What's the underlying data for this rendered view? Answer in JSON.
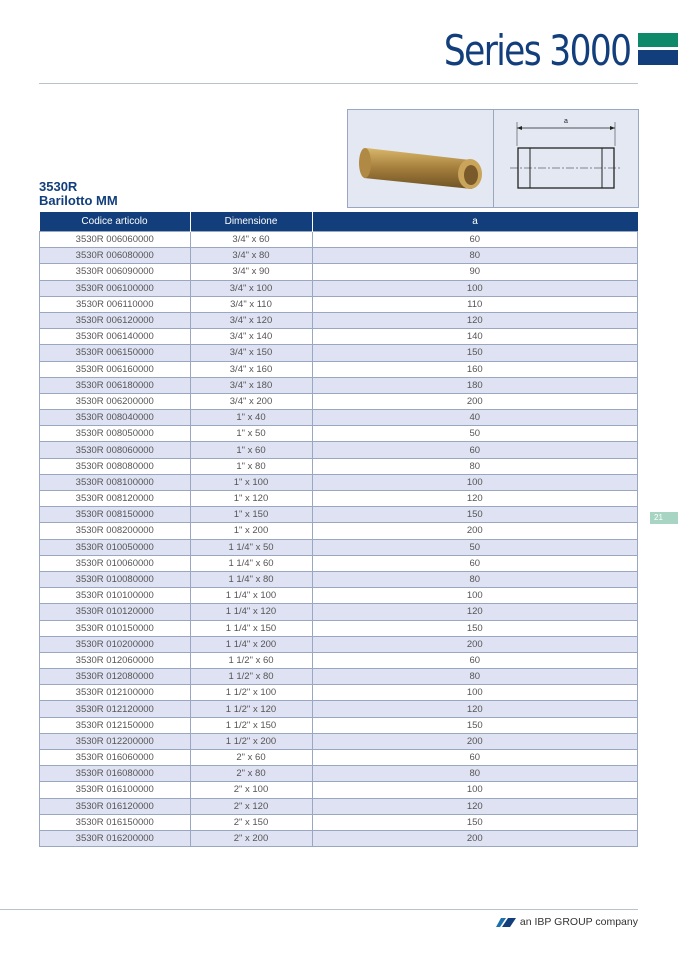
{
  "header": {
    "brand": "Series 3000",
    "colors": {
      "brand_blue": "#123f7c",
      "brand_green": "#0e8a6a"
    }
  },
  "product": {
    "code": "3530R",
    "name": "Barilotto MM",
    "dimension_label": "a"
  },
  "table": {
    "columns": [
      "Codice articolo",
      "Dimensione",
      "a"
    ],
    "rows": [
      [
        "3530R 006060000",
        "3/4\" x 60",
        "60"
      ],
      [
        "3530R 006080000",
        "3/4\" x 80",
        "80"
      ],
      [
        "3530R 006090000",
        "3/4\" x 90",
        "90"
      ],
      [
        "3530R 006100000",
        "3/4\" x 100",
        "100"
      ],
      [
        "3530R 006110000",
        "3/4\" x 110",
        "110"
      ],
      [
        "3530R 006120000",
        "3/4\" x 120",
        "120"
      ],
      [
        "3530R 006140000",
        "3/4\" x 140",
        "140"
      ],
      [
        "3530R 006150000",
        "3/4\" x 150",
        "150"
      ],
      [
        "3530R 006160000",
        "3/4\" x 160",
        "160"
      ],
      [
        "3530R 006180000",
        "3/4\" x 180",
        "180"
      ],
      [
        "3530R 006200000",
        "3/4\" x 200",
        "200"
      ],
      [
        "3530R 008040000",
        "1\" x 40",
        "40"
      ],
      [
        "3530R 008050000",
        "1\" x 50",
        "50"
      ],
      [
        "3530R 008060000",
        "1\" x 60",
        "60"
      ],
      [
        "3530R 008080000",
        "1\" x 80",
        "80"
      ],
      [
        "3530R 008100000",
        "1\" x 100",
        "100"
      ],
      [
        "3530R 008120000",
        "1\" x 120",
        "120"
      ],
      [
        "3530R 008150000",
        "1\" x 150",
        "150"
      ],
      [
        "3530R 008200000",
        "1\" x 200",
        "200"
      ],
      [
        "3530R 010050000",
        "1 1/4\" x 50",
        "50"
      ],
      [
        "3530R 010060000",
        "1 1/4\" x 60",
        "60"
      ],
      [
        "3530R 010080000",
        "1 1/4\" x 80",
        "80"
      ],
      [
        "3530R 010100000",
        "1 1/4\" x 100",
        "100"
      ],
      [
        "3530R 010120000",
        "1 1/4\" x 120",
        "120"
      ],
      [
        "3530R 010150000",
        "1 1/4\" x 150",
        "150"
      ],
      [
        "3530R 010200000",
        "1 1/4\" x 200",
        "200"
      ],
      [
        "3530R 012060000",
        "1 1/2\" x 60",
        "60"
      ],
      [
        "3530R 012080000",
        "1 1/2\" x 80",
        "80"
      ],
      [
        "3530R 012100000",
        "1 1/2\" x 100",
        "100"
      ],
      [
        "3530R 012120000",
        "1 1/2\" x 120",
        "120"
      ],
      [
        "3530R 012150000",
        "1 1/2\" x 150",
        "150"
      ],
      [
        "3530R 012200000",
        "1 1/2\" x 200",
        "200"
      ],
      [
        "3530R 016060000",
        "2\" x 60",
        "60"
      ],
      [
        "3530R 016080000",
        "2\" x 80",
        "80"
      ],
      [
        "3530R 016100000",
        "2\" x 100",
        "100"
      ],
      [
        "3530R 016120000",
        "2\" x 120",
        "120"
      ],
      [
        "3530R 016150000",
        "2\" x 150",
        "150"
      ],
      [
        "3530R 016200000",
        "2\" x 200",
        "200"
      ]
    ]
  },
  "page_number": "21",
  "footer": {
    "text": "an IBP GROUP company",
    "icon": "ibp-logo-icon"
  }
}
